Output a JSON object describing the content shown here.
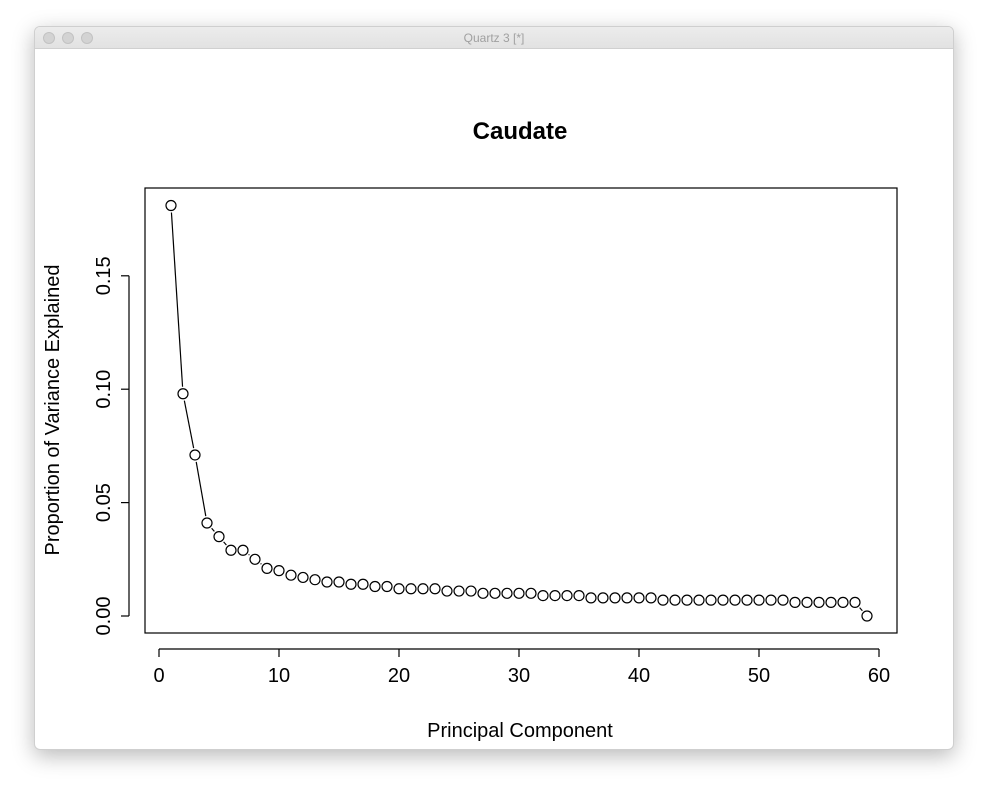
{
  "window": {
    "title": "Quartz 3 [*]"
  },
  "chart_data": {
    "type": "line",
    "title": "Caudate",
    "xlabel": "Principal Component",
    "ylabel": "Proportion of Variance Explained",
    "xlim": [
      0,
      60
    ],
    "ylim": [
      0,
      0.18
    ],
    "x_ticks": [
      0,
      10,
      20,
      30,
      40,
      50,
      60
    ],
    "x_tick_labels": [
      "0",
      "10",
      "20",
      "30",
      "40",
      "50",
      "60"
    ],
    "y_ticks": [
      0,
      0.05,
      0.1,
      0.15
    ],
    "y_tick_labels": [
      "0.00",
      "0.05",
      "0.10",
      "0.15"
    ],
    "grid": false,
    "legend": "none",
    "marker": "open-circle",
    "series": [
      {
        "x": [
          1,
          2,
          3,
          4,
          5,
          6,
          7,
          8,
          9,
          10,
          11,
          12,
          13,
          14,
          15,
          16,
          17,
          18,
          19,
          20,
          21,
          22,
          23,
          24,
          25,
          26,
          27,
          28,
          29,
          30,
          31,
          32,
          33,
          34,
          35,
          36,
          37,
          38,
          39,
          40,
          41,
          42,
          43,
          44,
          45,
          46,
          47,
          48,
          49,
          50,
          51,
          52,
          53,
          54,
          55,
          56,
          57,
          58,
          59
        ],
        "values": [
          0.181,
          0.098,
          0.071,
          0.041,
          0.035,
          0.029,
          0.029,
          0.025,
          0.021,
          0.02,
          0.018,
          0.017,
          0.016,
          0.015,
          0.015,
          0.014,
          0.014,
          0.013,
          0.013,
          0.012,
          0.012,
          0.012,
          0.012,
          0.011,
          0.011,
          0.011,
          0.01,
          0.01,
          0.01,
          0.01,
          0.01,
          0.009,
          0.009,
          0.009,
          0.009,
          0.008,
          0.008,
          0.008,
          0.008,
          0.008,
          0.008,
          0.007,
          0.007,
          0.007,
          0.007,
          0.007,
          0.007,
          0.007,
          0.007,
          0.007,
          0.007,
          0.007,
          0.006,
          0.006,
          0.006,
          0.006,
          0.006,
          0.006,
          0.0
        ]
      }
    ]
  }
}
